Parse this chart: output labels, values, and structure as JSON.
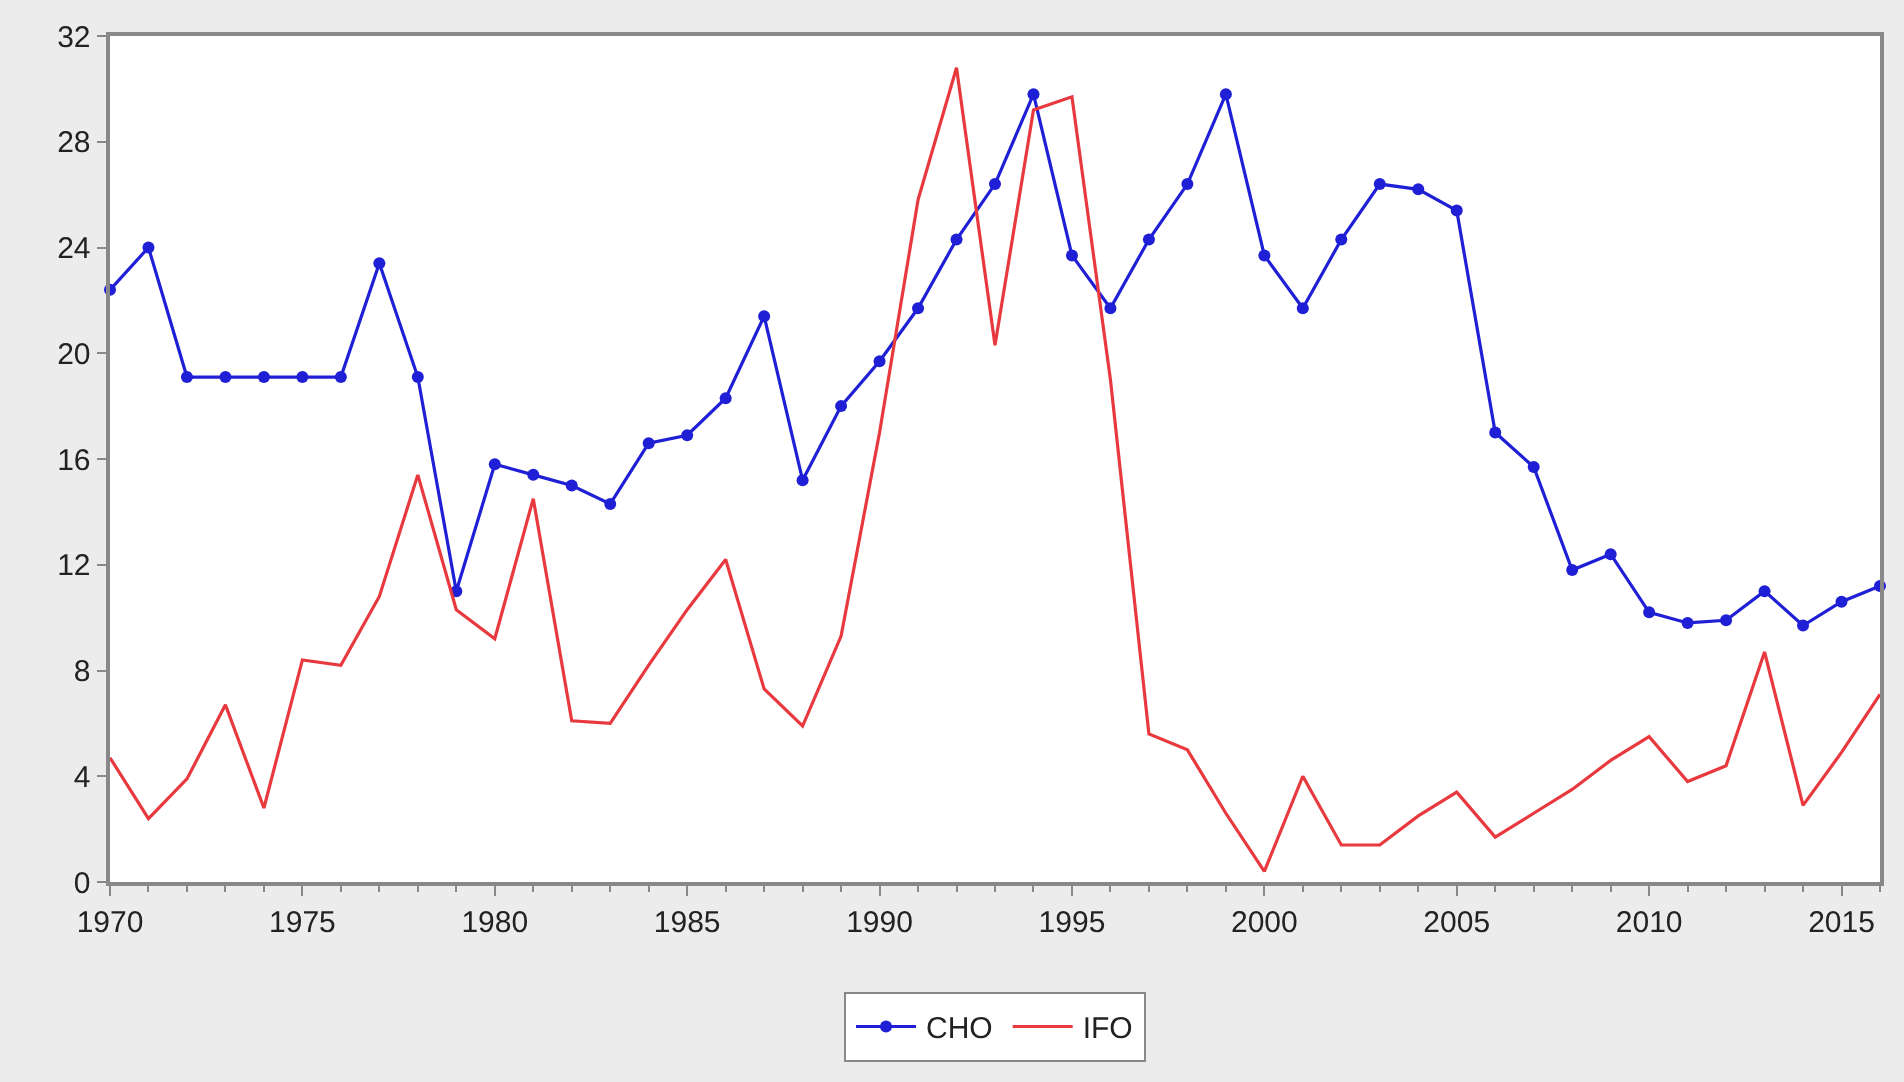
{
  "chart_data": {
    "type": "line",
    "x": [
      1970,
      1971,
      1972,
      1973,
      1974,
      1975,
      1976,
      1977,
      1978,
      1979,
      1980,
      1981,
      1982,
      1983,
      1984,
      1985,
      1986,
      1987,
      1988,
      1989,
      1990,
      1991,
      1992,
      1993,
      1994,
      1995,
      1996,
      1997,
      1998,
      1999,
      2000,
      2001,
      2002,
      2003,
      2004,
      2005,
      2006,
      2007,
      2008,
      2009,
      2010,
      2011,
      2012,
      2013,
      2014,
      2015,
      2016
    ],
    "series": [
      {
        "name": "CHO",
        "color": "#1f1fd6",
        "marker": "circle",
        "values": [
          22.4,
          24.0,
          19.1,
          19.1,
          19.1,
          19.1,
          19.1,
          23.4,
          19.1,
          11.0,
          15.8,
          15.4,
          15.0,
          14.3,
          16.6,
          16.9,
          18.3,
          21.4,
          15.2,
          18.0,
          19.7,
          21.7,
          24.3,
          26.4,
          29.8,
          23.7,
          21.7,
          24.3,
          26.4,
          29.8,
          23.7,
          21.7,
          24.3,
          26.4,
          26.2,
          25.4,
          17.0,
          15.7,
          11.8,
          12.4,
          10.2,
          9.8,
          9.9,
          11.0,
          9.7,
          10.6,
          11.2
        ]
      },
      {
        "name": "IFO",
        "color": "#e8393f",
        "marker": "none",
        "values": [
          4.7,
          2.4,
          3.9,
          6.7,
          2.8,
          8.4,
          8.2,
          10.8,
          15.4,
          10.3,
          9.2,
          14.5,
          6.1,
          6.0,
          8.2,
          10.3,
          12.2,
          7.3,
          5.9,
          9.3,
          17.0,
          25.8,
          30.8,
          20.3,
          29.2,
          29.7,
          19.0,
          5.6,
          5.0,
          2.6,
          0.4,
          4.0,
          1.4,
          1.4,
          2.5,
          3.4,
          1.7,
          2.6,
          3.5,
          4.6,
          5.5,
          3.8,
          4.4,
          8.7,
          2.9,
          4.9,
          7.1
        ]
      }
    ],
    "xlim": [
      1970,
      2016
    ],
    "xticks": [
      1970,
      1975,
      1980,
      1985,
      1990,
      1995,
      2000,
      2005,
      2010,
      2015
    ],
    "ylim": [
      0,
      32
    ],
    "yticks": [
      0,
      4,
      8,
      12,
      16,
      20,
      24,
      28,
      32
    ],
    "legend": "bottom",
    "line_style": "solid"
  }
}
